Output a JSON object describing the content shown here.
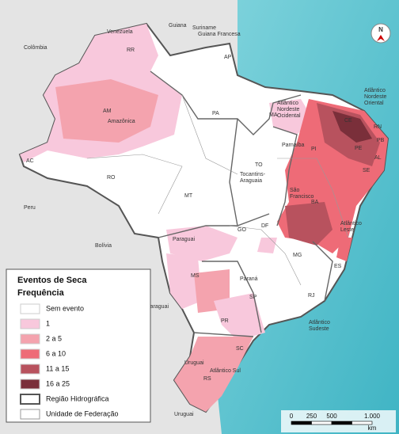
{
  "map": {
    "countries": [
      "Venezuela",
      "Guiana",
      "Suriname",
      "Guiana Francesa",
      "Colômbia",
      "Peru",
      "Bolívia",
      "Paraguai",
      "Uruguai"
    ],
    "states": [
      "RR",
      "AP",
      "AM",
      "PA",
      "MA",
      "CE",
      "RN",
      "PB",
      "PE",
      "AL",
      "SE",
      "PI",
      "BA",
      "TO",
      "AC",
      "RO",
      "MT",
      "GO",
      "DF",
      "MG",
      "ES",
      "RJ",
      "SP",
      "MS",
      "PR",
      "SC",
      "RS"
    ],
    "regions": [
      {
        "lines": [
          "Amazônica"
        ]
      },
      {
        "lines": [
          "Atlântico",
          "Nordeste",
          "Ocidental"
        ]
      },
      {
        "lines": [
          "Atlântico",
          "Nordeste",
          "Oriental"
        ]
      },
      {
        "lines": [
          "Parnaíba"
        ]
      },
      {
        "lines": [
          "Tocantins-",
          "Araguaia"
        ]
      },
      {
        "lines": [
          "São",
          "Francisco"
        ]
      },
      {
        "lines": [
          "Atlântico",
          "Leste"
        ]
      },
      {
        "lines": [
          "Paraguai"
        ]
      },
      {
        "lines": [
          "Paraná"
        ]
      },
      {
        "lines": [
          "Atlântico",
          "Sudeste"
        ]
      },
      {
        "lines": [
          "Uruguai"
        ]
      },
      {
        "lines": [
          "Atlântico Sul"
        ]
      }
    ]
  },
  "legend": {
    "title": "Eventos de Seca",
    "subtitle": "Frequência",
    "items": [
      {
        "label": "Sem evento",
        "color": "#ffffff"
      },
      {
        "label": "1",
        "color": "#f8c8dc"
      },
      {
        "label": "2 a 5",
        "color": "#f4a3ae"
      },
      {
        "label": "6 a 10",
        "color": "#ee6b77"
      },
      {
        "label": "11 a 15",
        "color": "#b8525e"
      },
      {
        "label": "16 a 25",
        "color": "#7a2f3a"
      }
    ],
    "boundaries": [
      "Região Hidrográfica",
      "Unidade de Federação"
    ]
  },
  "scale": {
    "labels": [
      "0",
      "250",
      "500",
      "1.000"
    ],
    "unit": "km"
  },
  "north": "N"
}
